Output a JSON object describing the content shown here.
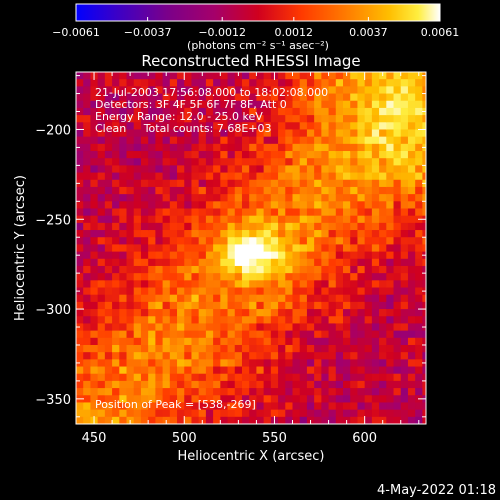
{
  "chart_data": {
    "type": "heatmap",
    "title": "Reconstructed RHESSI Image",
    "xlabel": "Heliocentric X (arcsec)",
    "ylabel": "Heliocentric Y (arcsec)",
    "xlim": [
      440,
      634
    ],
    "ylim": [
      -364,
      -168
    ],
    "x_ticks": [
      "450",
      "500",
      "550",
      "600"
    ],
    "y_ticks": [
      "−200",
      "−250",
      "−300",
      "−350"
    ],
    "x_tick_values": [
      450,
      500,
      550,
      600
    ],
    "y_tick_values": [
      -200,
      -250,
      -300,
      -350
    ],
    "colorbar": {
      "range": [
        -0.0061,
        0.0061
      ],
      "tick_values": [
        -0.0061,
        -0.0037,
        -0.0012,
        0.0012,
        0.0037,
        0.0061
      ],
      "tick_labels": [
        "−0.0061",
        "−0.0037",
        "−0.0012",
        "0.0012",
        "0.0037",
        "0.0061"
      ],
      "units_label": "(photons cm⁻² s⁻¹ asec⁻²)",
      "colormap": [
        "#0000ff",
        "#3a00c8",
        "#7a008a",
        "#a5006a",
        "#d0001f",
        "#ff3a00",
        "#ff7a00",
        "#ffbe00",
        "#ffee40",
        "#ffffff"
      ]
    },
    "annotations": [
      "21-Jul-2003 17:56:08.000 to 18:02:08.000",
      "Detectors: 3F 4F 5F 6F 7F 8F, Att 0",
      "Energy Range: 12.0 - 25.0 keV",
      "Clean     Total counts: 7.68E+03"
    ],
    "peak_label": "Position of Peak = [538,-269]",
    "peak": {
      "x": 538,
      "y": -269,
      "value": 0.0061
    },
    "background_value": -0.0012,
    "ridge": {
      "angle_deg": 45,
      "y_offset_arcsec": -25,
      "value": 0.0015
    },
    "timestamp": "4-May-2022 01:18"
  }
}
